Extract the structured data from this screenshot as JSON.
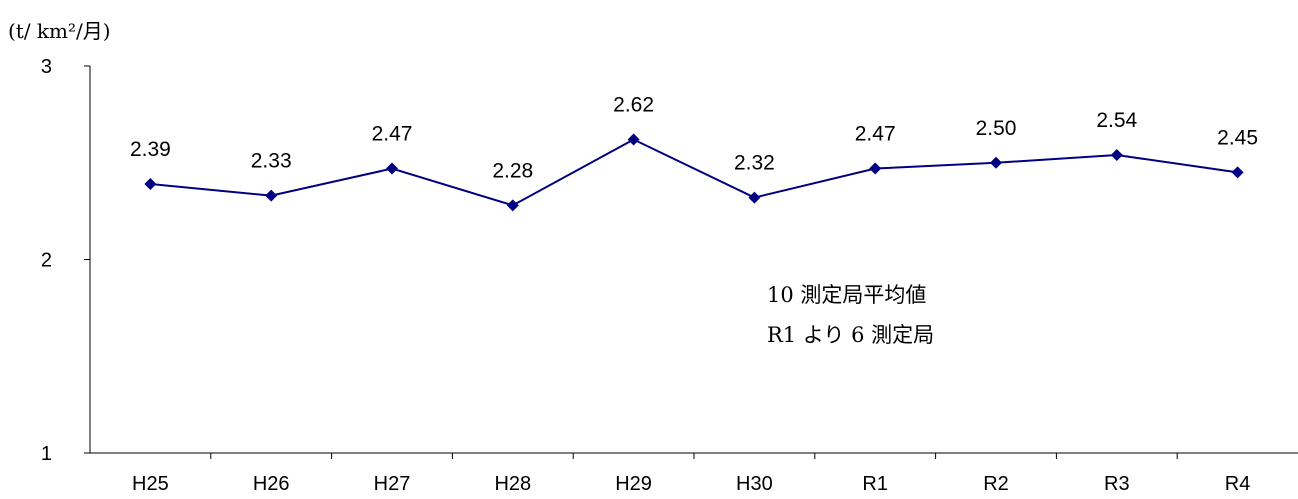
{
  "chart_data": {
    "type": "line",
    "title": "",
    "ylabel": "(t/ km²/月)",
    "xlabel": "",
    "categories": [
      "H25",
      "H26",
      "H27",
      "H28",
      "H29",
      "H30",
      "R1",
      "R2",
      "R3",
      "R4"
    ],
    "series": [
      {
        "values": [
          2.39,
          2.33,
          2.47,
          2.28,
          2.62,
          2.32,
          2.47,
          2.5,
          2.54,
          2.45
        ],
        "data_labels": [
          "2.39",
          "2.33",
          "2.47",
          "2.28",
          "2.62",
          "2.32",
          "2.47",
          "2.50",
          "2.54",
          "2.45"
        ],
        "color": "#000080",
        "marker": "diamond"
      }
    ],
    "ylim": [
      1,
      3
    ],
    "yticks": [
      "1",
      "2",
      "3"
    ],
    "grid": false,
    "annotations": [
      "10 測定局平均値",
      "R1 より 6 測定局"
    ]
  }
}
